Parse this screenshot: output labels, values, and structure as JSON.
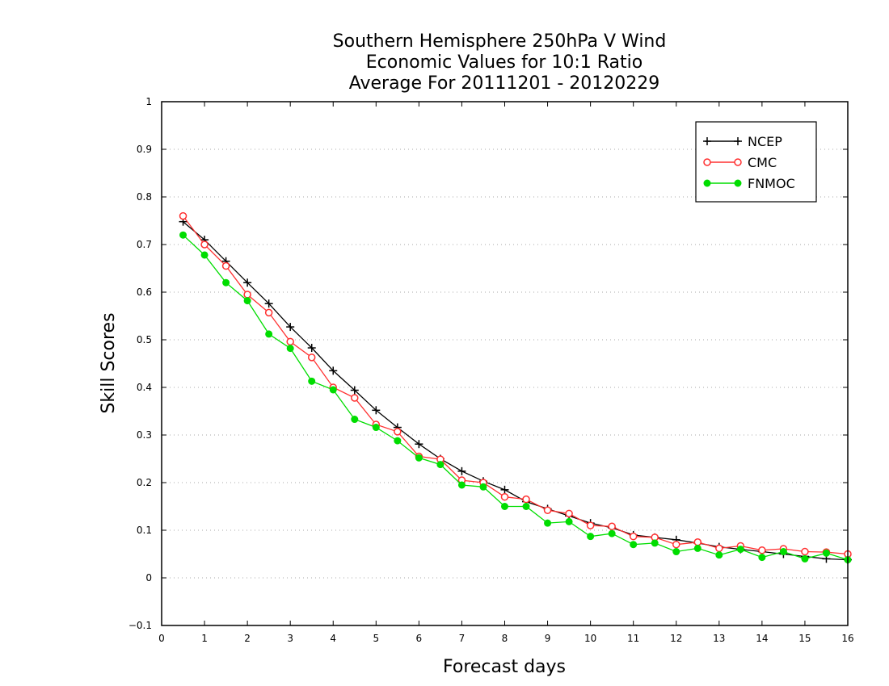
{
  "chart_data": {
    "type": "line",
    "title_lines": [
      "Southern Hemisphere 250hPa V Wind",
      "Economic Values for 10:1 Ratio",
      "Average For 20111201 - 20120229"
    ],
    "xlabel": "Forecast days",
    "ylabel": "Skill Scores",
    "xlim": [
      0,
      16
    ],
    "ylim": [
      -0.1,
      1
    ],
    "xticks": [
      0,
      1,
      2,
      3,
      4,
      5,
      6,
      7,
      8,
      9,
      10,
      11,
      12,
      13,
      14,
      15,
      16
    ],
    "yticks": [
      -0.1,
      0,
      0.1,
      0.2,
      0.3,
      0.4,
      0.5,
      0.6,
      0.7,
      0.8,
      0.9,
      1
    ],
    "ytick_labels": [
      "−0.1",
      "0",
      "0.1",
      "0.2",
      "0.3",
      "0.4",
      "0.5",
      "0.6",
      "0.7",
      "0.8",
      "0.9",
      "1"
    ],
    "grid": "horizontal dotted",
    "legend_position": "top-right",
    "x": [
      0.5,
      1,
      1.5,
      2,
      2.5,
      3,
      3.5,
      4,
      4.5,
      5,
      5.5,
      6,
      6.5,
      7,
      7.5,
      8,
      8.5,
      9,
      9.5,
      10,
      10.5,
      11,
      11.5,
      12,
      12.5,
      13,
      13.5,
      14,
      14.5,
      15,
      15.5,
      16
    ],
    "series": [
      {
        "name": "NCEP",
        "color": "#000000",
        "marker": "plus",
        "values": [
          0.748,
          0.71,
          0.665,
          0.62,
          0.576,
          0.527,
          0.483,
          0.435,
          0.394,
          0.352,
          0.316,
          0.281,
          0.25,
          0.224,
          0.203,
          0.185,
          0.16,
          0.145,
          0.13,
          0.115,
          0.105,
          0.09,
          0.085,
          0.08,
          0.073,
          0.065,
          0.06,
          0.055,
          0.05,
          0.045,
          0.04,
          0.038
        ]
      },
      {
        "name": "CMC",
        "color": "#ff3030",
        "marker": "open-circle",
        "values": [
          0.76,
          0.7,
          0.655,
          0.595,
          0.557,
          0.496,
          0.463,
          0.4,
          0.378,
          0.322,
          0.307,
          0.255,
          0.249,
          0.205,
          0.2,
          0.17,
          0.165,
          0.142,
          0.135,
          0.11,
          0.108,
          0.087,
          0.085,
          0.07,
          0.075,
          0.062,
          0.067,
          0.058,
          0.061,
          0.055,
          0.054,
          0.05
        ]
      },
      {
        "name": "FNMOC",
        "color": "#00dd00",
        "marker": "filled-circle",
        "values": [
          0.72,
          0.678,
          0.62,
          0.582,
          0.512,
          0.482,
          0.413,
          0.395,
          0.333,
          0.316,
          0.288,
          0.252,
          0.238,
          0.195,
          0.191,
          0.15,
          0.15,
          0.115,
          0.118,
          0.087,
          0.093,
          0.07,
          0.073,
          0.055,
          0.062,
          0.048,
          0.06,
          0.043,
          0.055,
          0.04,
          0.052,
          0.038
        ]
      }
    ]
  }
}
